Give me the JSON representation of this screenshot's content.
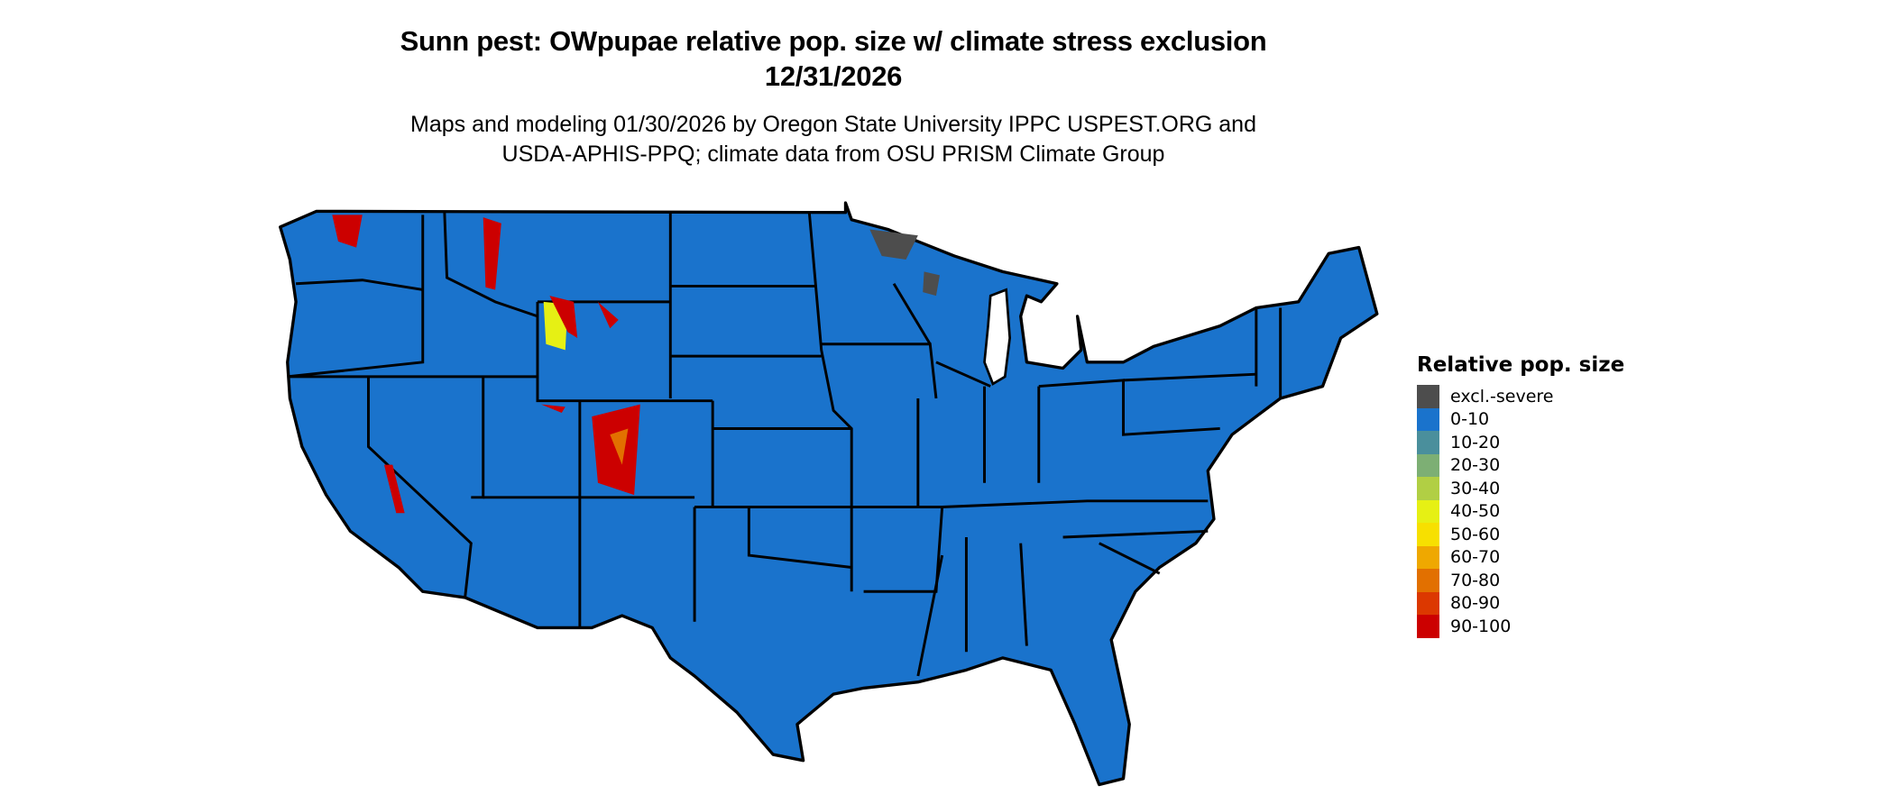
{
  "title": {
    "line1": "Sunn pest: OWpupae relative pop. size w/ climate stress exclusion",
    "line2": "12/31/2026"
  },
  "subtitle": {
    "line1": "Maps and modeling 01/30/2026 by Oregon State University IPPC USPEST.ORG and",
    "line2": "USDA-APHIS-PPQ; climate data from OSU PRISM Climate Group"
  },
  "map": {
    "region": "Contiguous United States",
    "base_color": "#1A73CC",
    "border_color": "#000000"
  },
  "legend": {
    "title": "Relative pop. size",
    "items": [
      {
        "label": "excl.-severe",
        "color": "#4D4D4D"
      },
      {
        "label": "0-10",
        "color": "#1A73CC"
      },
      {
        "label": "10-20",
        "color": "#4A8F9C"
      },
      {
        "label": "20-30",
        "color": "#7DAF74"
      },
      {
        "label": "30-40",
        "color": "#B1CF44"
      },
      {
        "label": "40-50",
        "color": "#E6F014"
      },
      {
        "label": "50-60",
        "color": "#F7E000"
      },
      {
        "label": "60-70",
        "color": "#EFA800"
      },
      {
        "label": "70-80",
        "color": "#E27000"
      },
      {
        "label": "80-90",
        "color": "#DC3800"
      },
      {
        "label": "90-100",
        "color": "#CC0000"
      }
    ]
  }
}
